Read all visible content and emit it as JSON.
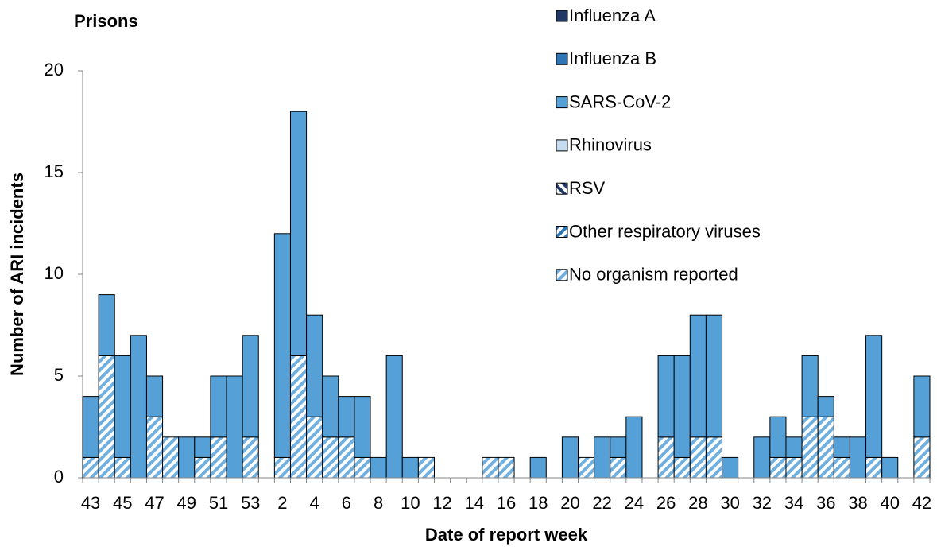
{
  "chart_data": {
    "type": "stacked-bar",
    "title": "Prisons",
    "x_label": "Date of report week",
    "y_label": "Number of ARI incidents",
    "categories": [
      "43",
      null,
      "45",
      null,
      "47",
      null,
      "49",
      null,
      "51",
      null,
      "53",
      null,
      "2",
      null,
      "4",
      null,
      "6",
      null,
      "8",
      null,
      "10",
      null,
      "12",
      null,
      "14",
      null,
      "16",
      null,
      "18",
      null,
      "20",
      null,
      "22",
      null,
      "24",
      null,
      "26",
      null,
      "28",
      null,
      "30",
      null,
      "32",
      null,
      "34",
      null,
      "36",
      null,
      "38",
      null,
      "40",
      null,
      "42"
    ],
    "series": [
      {
        "name": "Influenza A",
        "color": "#1f3864",
        "pattern": "solid",
        "values": [
          0,
          0,
          0,
          0,
          0,
          0,
          0,
          0,
          0,
          0,
          0,
          0,
          0,
          0,
          0,
          0,
          0,
          0,
          0,
          0,
          0,
          0,
          0,
          0,
          0,
          0,
          0,
          0,
          0,
          0,
          0,
          0,
          0,
          0,
          0,
          0,
          0,
          0,
          0,
          0,
          0,
          0,
          0,
          0,
          0,
          0,
          0,
          0,
          0,
          0,
          0,
          0,
          0
        ]
      },
      {
        "name": "Influenza B",
        "color": "#2e75b6",
        "pattern": "solid",
        "values": [
          0,
          0,
          0,
          0,
          0,
          0,
          0,
          0,
          0,
          0,
          0,
          0,
          0,
          0,
          0,
          0,
          0,
          0,
          0,
          0,
          0,
          0,
          0,
          0,
          0,
          0,
          0,
          0,
          0,
          0,
          0,
          0,
          0,
          0,
          0,
          0,
          0,
          0,
          0,
          0,
          0,
          0,
          0,
          0,
          0,
          0,
          0,
          0,
          0,
          0,
          0,
          0,
          0
        ]
      },
      {
        "name": "SARS-CoV-2",
        "color": "#55a0d6",
        "pattern": "solid",
        "values": [
          3,
          3,
          5,
          7,
          2,
          0,
          2,
          1,
          3,
          5,
          5,
          0,
          11,
          12,
          5,
          3,
          2,
          3,
          1,
          6,
          1,
          0,
          0,
          0,
          0,
          0,
          0,
          0,
          1,
          0,
          2,
          0,
          2,
          1,
          3,
          0,
          4,
          5,
          6,
          6,
          1,
          0,
          2,
          2,
          1,
          3,
          1,
          1,
          2,
          6,
          1,
          0,
          3
        ]
      },
      {
        "name": "Rhinovirus",
        "color": "#c5dcf0",
        "pattern": "solid",
        "values": [
          0,
          0,
          0,
          0,
          0,
          0,
          0,
          0,
          0,
          0,
          0,
          0,
          0,
          0,
          0,
          0,
          0,
          0,
          0,
          0,
          0,
          0,
          0,
          0,
          0,
          0,
          0,
          0,
          0,
          0,
          0,
          0,
          0,
          0,
          0,
          0,
          0,
          0,
          0,
          0,
          0,
          0,
          0,
          0,
          0,
          0,
          0,
          0,
          0,
          0,
          0,
          0,
          0
        ]
      },
      {
        "name": "RSV",
        "color": "#1f3864",
        "pattern": "hatch-down",
        "values": [
          0,
          0,
          0,
          0,
          0,
          0,
          0,
          0,
          0,
          0,
          0,
          0,
          0,
          0,
          0,
          0,
          0,
          0,
          0,
          0,
          0,
          0,
          0,
          0,
          0,
          0,
          0,
          0,
          0,
          0,
          0,
          0,
          0,
          0,
          0,
          0,
          0,
          0,
          0,
          0,
          0,
          0,
          0,
          0,
          0,
          0,
          0,
          0,
          0,
          0,
          0,
          0,
          0
        ]
      },
      {
        "name": "Other respiratory viruses",
        "color": "#2e75b6",
        "pattern": "hatch-up",
        "values": [
          0,
          0,
          0,
          0,
          0,
          0,
          0,
          0,
          0,
          0,
          0,
          0,
          0,
          0,
          0,
          0,
          0,
          0,
          0,
          0,
          0,
          0,
          0,
          0,
          0,
          0,
          0,
          0,
          0,
          0,
          0,
          0,
          0,
          0,
          0,
          0,
          0,
          0,
          0,
          0,
          0,
          0,
          0,
          0,
          0,
          0,
          0,
          0,
          0,
          0,
          0,
          0,
          0
        ]
      },
      {
        "name": "No organism reported",
        "color": "#6fb0e0",
        "pattern": "hatch-up",
        "values": [
          1,
          6,
          1,
          0,
          3,
          2,
          0,
          1,
          2,
          0,
          2,
          0,
          1,
          6,
          3,
          2,
          2,
          1,
          0,
          0,
          0,
          1,
          0,
          0,
          0,
          1,
          1,
          0,
          0,
          0,
          0,
          1,
          0,
          1,
          0,
          0,
          2,
          1,
          2,
          2,
          0,
          0,
          0,
          1,
          1,
          3,
          3,
          1,
          0,
          1,
          0,
          0,
          2
        ]
      }
    ],
    "ylim": [
      0,
      20
    ],
    "yticks": [
      0,
      5,
      10,
      15,
      20
    ]
  }
}
